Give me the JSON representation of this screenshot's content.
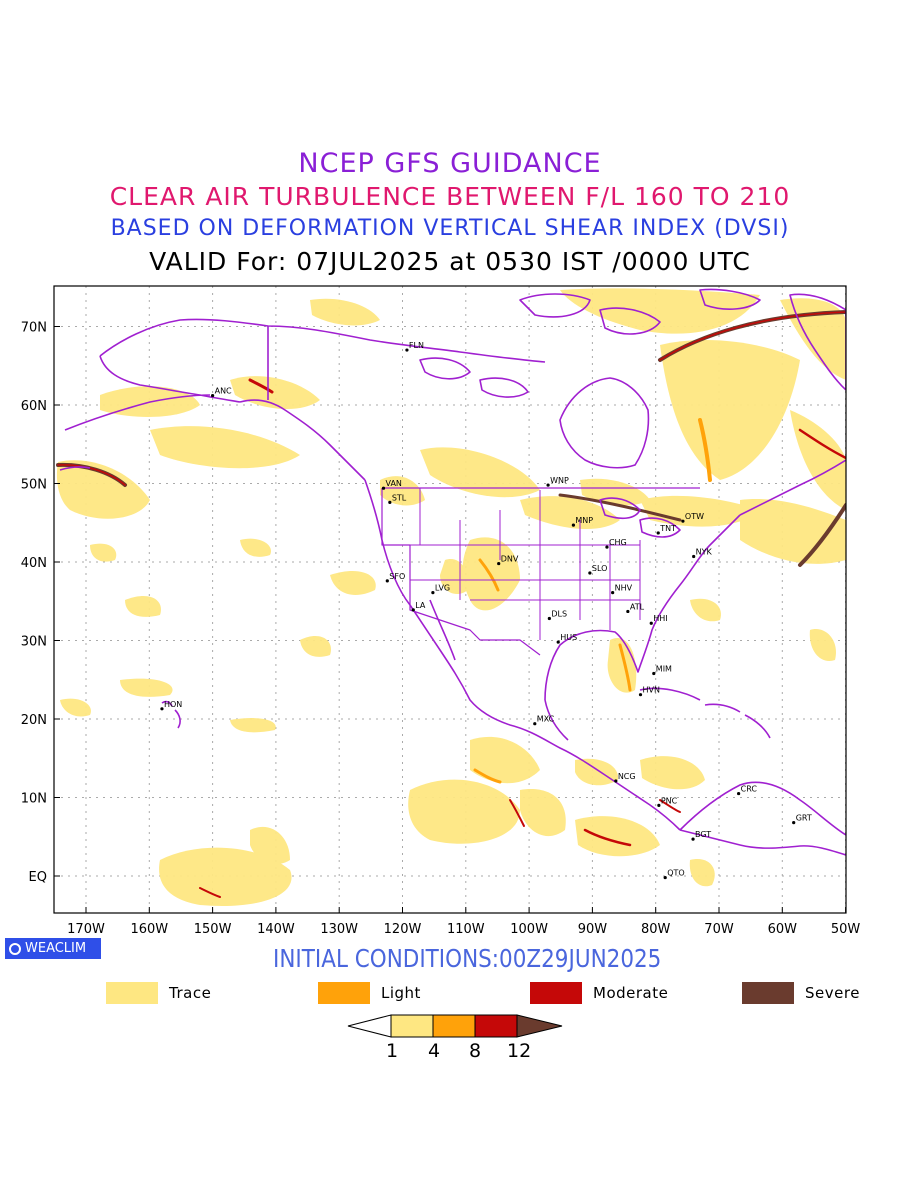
{
  "titles": {
    "line1": "NCEP GFS GUIDANCE",
    "line2": "CLEAR AIR TURBULENCE BETWEEN F/L 160 TO 210",
    "line3": "BASED ON DEFORMATION VERTICAL SHEAR INDEX (DVSI)",
    "line4": "VALID For: 07JUL2025 at 0530 IST /0000 UTC"
  },
  "map": {
    "lat_labels": [
      "70N",
      "60N",
      "50N",
      "40N",
      "30N",
      "20N",
      "10N",
      "EQ"
    ],
    "lon_labels": [
      "170W",
      "160W",
      "150W",
      "140W",
      "130W",
      "120W",
      "110W",
      "100W",
      "90W",
      "80W",
      "70W",
      "60W",
      "50W"
    ],
    "boundary_color": "#a020d0",
    "stations": [
      {
        "id": "FLN",
        "label": "FLN",
        "lon": -119.3,
        "lat": 67
      },
      {
        "id": "ANC",
        "label": "ANC",
        "lon": -150,
        "lat": 61.2
      },
      {
        "id": "VAN",
        "label": "VAN",
        "lon": -123,
        "lat": 49.4
      },
      {
        "id": "STL",
        "label": "STL",
        "lon": -122,
        "lat": 47.6
      },
      {
        "id": "WNP",
        "label": "WNP",
        "lon": -97,
        "lat": 49.8
      },
      {
        "id": "MNP",
        "label": "MNP",
        "lon": -93,
        "lat": 44.7
      },
      {
        "id": "OTW",
        "label": "OTW",
        "lon": -75.7,
        "lat": 45.2
      },
      {
        "id": "TNT",
        "label": "TNT",
        "lon": -79.6,
        "lat": 43.7
      },
      {
        "id": "CHG",
        "label": "CHG",
        "lon": -87.7,
        "lat": 41.9
      },
      {
        "id": "NYK",
        "label": "NYK",
        "lon": -74,
        "lat": 40.7
      },
      {
        "id": "DNV",
        "label": "DNV",
        "lon": -104.8,
        "lat": 39.8
      },
      {
        "id": "SFO",
        "label": "SFO",
        "lon": -122.4,
        "lat": 37.6
      },
      {
        "id": "LVG",
        "label": "LVG",
        "lon": -115.2,
        "lat": 36.1
      },
      {
        "id": "SLO",
        "label": "SLO",
        "lon": -90.4,
        "lat": 38.6
      },
      {
        "id": "NHV",
        "label": "NHV",
        "lon": -86.8,
        "lat": 36.1
      },
      {
        "id": "LA",
        "label": "LA",
        "lon": -118.3,
        "lat": 33.9
      },
      {
        "id": "ATL",
        "label": "ATL",
        "lon": -84.4,
        "lat": 33.7
      },
      {
        "id": "DLS",
        "label": "DLS",
        "lon": -96.8,
        "lat": 32.8
      },
      {
        "id": "HHI",
        "label": "HHI",
        "lon": -80.7,
        "lat": 32.2
      },
      {
        "id": "HUS",
        "label": "HUS",
        "lon": -95.4,
        "lat": 29.8
      },
      {
        "id": "MIM",
        "label": "MIM",
        "lon": -80.3,
        "lat": 25.8
      },
      {
        "id": "HVN",
        "label": "HVN",
        "lon": -82.4,
        "lat": 23.1
      },
      {
        "id": "HON",
        "label": "HON",
        "lon": -158,
        "lat": 21.3
      },
      {
        "id": "MXC",
        "label": "MXC",
        "lon": -99.1,
        "lat": 19.4
      },
      {
        "id": "NCG",
        "label": "NCG",
        "lon": -86.3,
        "lat": 12.1
      },
      {
        "id": "CRC",
        "label": "CRC",
        "lon": -66.9,
        "lat": 10.5
      },
      {
        "id": "GRT",
        "label": "GRT",
        "lon": -58.2,
        "lat": 6.8
      },
      {
        "id": "PNC",
        "label": "PNC",
        "lon": -79.5,
        "lat": 9
      },
      {
        "id": "BGT",
        "label": "BGT",
        "lon": -74.1,
        "lat": 4.7
      },
      {
        "id": "QTO",
        "label": "QTO",
        "lon": -78.5,
        "lat": -0.2
      }
    ]
  },
  "branding": {
    "label": "WEACLIM",
    "bg_color": "#2f4fe8"
  },
  "initial_conditions": "INITIAL CONDITIONS:00Z29JUN2025",
  "legend": [
    {
      "label": "Trace",
      "color": "#fee782"
    },
    {
      "label": "Light",
      "color": "#ffa20a"
    },
    {
      "label": "Moderate",
      "color": "#c50808"
    },
    {
      "label": "Severe",
      "color": "#6a3b2e"
    }
  ],
  "colorbar": {
    "ticks": [
      "1",
      "4",
      "8",
      "12"
    ],
    "colors": [
      "#ffffff",
      "#fee782",
      "#ffa20a",
      "#c50808",
      "#6a3b2e"
    ]
  }
}
